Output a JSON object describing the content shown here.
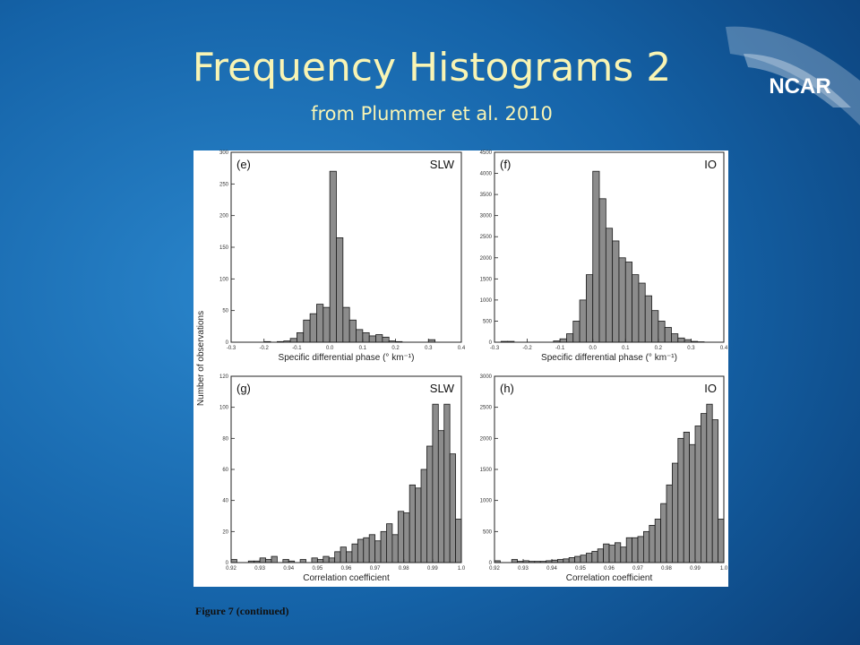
{
  "slide": {
    "title": "Frequency Histograms 2",
    "subtitle": "from Plummer et al. 2010",
    "logo": "NCAR"
  },
  "figure": {
    "y_label": "Number of observations",
    "caption": "Figure 7 (continued)"
  },
  "chart_data": [
    {
      "type": "histogram",
      "title": "(e)",
      "annotation": "SLW",
      "x_label": "Specific differential phase (° km⁻¹)",
      "color": "#8c8c8c",
      "bins": [
        -0.3,
        -0.28,
        -0.26,
        -0.24,
        -0.22,
        -0.2,
        -0.18,
        -0.16,
        -0.14,
        -0.12,
        -0.1,
        -0.08,
        -0.06,
        -0.04,
        -0.02,
        0,
        0.02,
        0.04,
        0.06,
        0.08,
        0.1,
        0.12,
        0.14,
        0.16,
        0.18,
        0.2,
        0.22,
        0.24,
        0.26,
        0.28,
        0.3,
        0.32,
        0.34,
        0.36,
        0.38,
        0.4
      ],
      "values": [
        0,
        0,
        0,
        0,
        0,
        1,
        0,
        1,
        2,
        6,
        15,
        35,
        45,
        60,
        55,
        270,
        165,
        55,
        35,
        20,
        15,
        10,
        12,
        8,
        2,
        1,
        0,
        0,
        0,
        0,
        4,
        0,
        0,
        0,
        0
      ],
      "xlim": [
        -0.3,
        0.4
      ],
      "ylim": [
        0,
        300
      ],
      "xticks": [
        -0.3,
        -0.2,
        -0.1,
        {
          "value": 0,
          "label": "0.0"
        },
        0.1,
        0.2,
        0.3,
        0.4
      ],
      "yticks": [
        0,
        50,
        100,
        150,
        200,
        250,
        300
      ]
    },
    {
      "type": "histogram",
      "title": "(f)",
      "annotation": "IO",
      "x_label": "Specific differential phase (° km⁻¹)",
      "color": "#8c8c8c",
      "bins": [
        -0.3,
        -0.28,
        -0.26,
        -0.24,
        -0.22,
        -0.2,
        -0.18,
        -0.16,
        -0.14,
        -0.12,
        -0.1,
        -0.08,
        -0.06,
        -0.04,
        -0.02,
        0,
        0.02,
        0.04,
        0.06,
        0.08,
        0.1,
        0.12,
        0.14,
        0.16,
        0.18,
        0.2,
        0.22,
        0.24,
        0.26,
        0.28,
        0.3,
        0.32,
        0.34,
        0.36,
        0.38,
        0.4
      ],
      "values": [
        0,
        20,
        20,
        0,
        0,
        0,
        0,
        0,
        0,
        30,
        80,
        200,
        500,
        1000,
        1600,
        4050,
        3400,
        2700,
        2400,
        2000,
        1900,
        1600,
        1400,
        1100,
        750,
        500,
        350,
        200,
        100,
        60,
        20,
        10,
        0,
        0,
        0
      ],
      "xlim": [
        -0.3,
        0.4
      ],
      "ylim": [
        0,
        4500
      ],
      "xticks": [
        -0.3,
        -0.2,
        -0.1,
        {
          "value": 0,
          "label": "0.0"
        },
        0.1,
        0.2,
        0.3,
        0.4
      ],
      "yticks": [
        0,
        500,
        1000,
        1500,
        2000,
        2500,
        3000,
        3500,
        4000,
        4500
      ]
    },
    {
      "type": "histogram",
      "title": "(g)",
      "annotation": "SLW",
      "x_label": "Correlation coefficient",
      "color": "#8c8c8c",
      "bins": [
        0.92,
        0.922,
        0.924,
        0.926,
        0.928,
        0.93,
        0.932,
        0.934,
        0.936,
        0.938,
        0.94,
        0.942,
        0.944,
        0.946,
        0.948,
        0.95,
        0.952,
        0.954,
        0.956,
        0.958,
        0.96,
        0.962,
        0.964,
        0.966,
        0.968,
        0.97,
        0.972,
        0.974,
        0.976,
        0.978,
        0.98,
        0.982,
        0.984,
        0.986,
        0.988,
        0.99,
        0.992,
        0.994,
        0.996,
        0.998,
        1
      ],
      "values": [
        2,
        0,
        0,
        1,
        1,
        3,
        2,
        4,
        0,
        2,
        1,
        0,
        2,
        0,
        3,
        2,
        4,
        3,
        7,
        10,
        7,
        12,
        15,
        16,
        18,
        14,
        20,
        25,
        18,
        33,
        32,
        50,
        48,
        60,
        75,
        102,
        85,
        102,
        70,
        28
      ],
      "xlim": [
        0.92,
        1
      ],
      "ylim": [
        0,
        120
      ],
      "xticks": [
        0.92,
        0.93,
        0.94,
        0.95,
        0.96,
        0.97,
        0.98,
        0.99,
        {
          "value": 1,
          "label": "1.0"
        }
      ],
      "yticks": [
        0,
        20,
        40,
        60,
        80,
        100,
        120
      ]
    },
    {
      "type": "histogram",
      "title": "(h)",
      "annotation": "IO",
      "x_label": "Correlation coefficient",
      "color": "#8c8c8c",
      "bins": [
        0.92,
        0.922,
        0.924,
        0.926,
        0.928,
        0.93,
        0.932,
        0.934,
        0.936,
        0.938,
        0.94,
        0.942,
        0.944,
        0.946,
        0.948,
        0.95,
        0.952,
        0.954,
        0.956,
        0.958,
        0.96,
        0.962,
        0.964,
        0.966,
        0.968,
        0.97,
        0.972,
        0.974,
        0.976,
        0.978,
        0.98,
        0.982,
        0.984,
        0.986,
        0.988,
        0.99,
        0.992,
        0.994,
        0.996,
        0.998,
        1
      ],
      "values": [
        30,
        0,
        0,
        50,
        20,
        30,
        20,
        20,
        20,
        30,
        40,
        50,
        60,
        80,
        100,
        120,
        150,
        180,
        220,
        300,
        280,
        320,
        250,
        400,
        400,
        420,
        500,
        600,
        700,
        950,
        1250,
        1600,
        2000,
        2100,
        1900,
        2200,
        2400,
        2550,
        2300,
        700
      ],
      "xlim": [
        0.92,
        1
      ],
      "ylim": [
        0,
        3000
      ],
      "xticks": [
        0.92,
        0.93,
        0.94,
        0.95,
        0.96,
        0.97,
        0.98,
        0.99,
        {
          "value": 1,
          "label": "1.0"
        }
      ],
      "yticks": [
        0,
        500,
        1000,
        1500,
        2000,
        2500,
        3000
      ]
    }
  ]
}
